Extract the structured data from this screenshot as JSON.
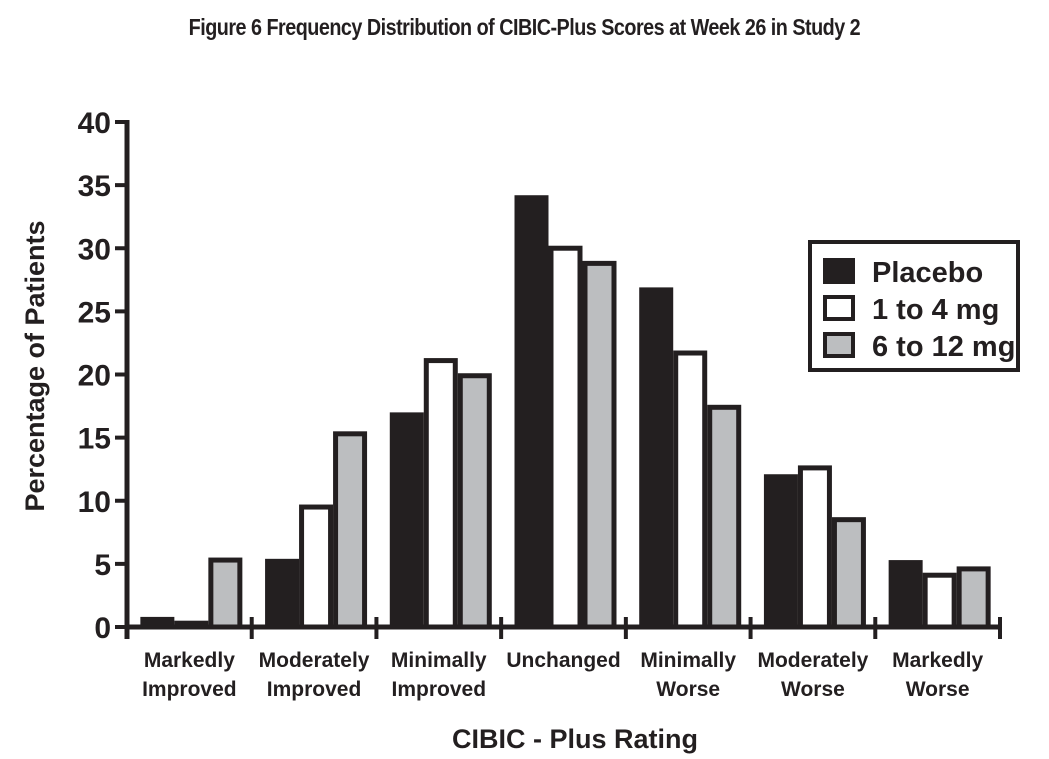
{
  "chart_data": {
    "type": "bar",
    "title": "Figure 6 Frequency Distribution of CIBIC-Plus Scores at Week 26 in Study 2",
    "xlabel": "CIBIC - Plus Rating",
    "ylabel": "Percentage of Patients",
    "ylim": [
      0,
      40
    ],
    "yticks": [
      0,
      5,
      10,
      15,
      20,
      25,
      30,
      35,
      40
    ],
    "grid": false,
    "legend_position": "right",
    "categories": [
      [
        "Markedly",
        "Improved"
      ],
      [
        "Moderately",
        "Improved"
      ],
      [
        "Minimally",
        "Improved"
      ],
      [
        "Unchanged"
      ],
      [
        "Minimally",
        "Worse"
      ],
      [
        "Moderately",
        "Worse"
      ],
      [
        "Markedly",
        "Worse"
      ]
    ],
    "series": [
      {
        "name": "Placebo",
        "fill": "#231f20",
        "values": [
          0.8,
          5.4,
          17.0,
          34.2,
          26.9,
          12.1,
          5.3
        ]
      },
      {
        "name": "1 to 4 mg",
        "fill": "#ffffff",
        "values": [
          0.5,
          9.7,
          21.3,
          30.2,
          21.9,
          12.8,
          4.3
        ]
      },
      {
        "name": "6 to 12 mg",
        "fill": "#bcbec0",
        "values": [
          5.5,
          15.5,
          20.1,
          29.0,
          17.6,
          8.7,
          4.8
        ]
      }
    ]
  },
  "colors": {
    "ink": "#231f20",
    "gray": "#bcbec0"
  }
}
